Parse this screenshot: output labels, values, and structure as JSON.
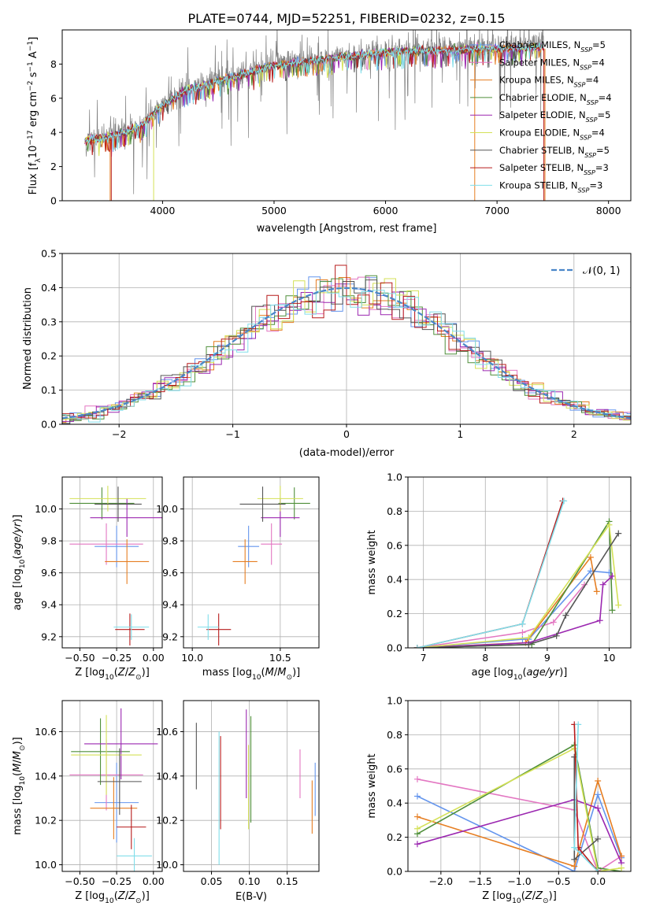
{
  "title": "PLATE=0744, MJD=52251, FIBERID=0232, z=0.15",
  "models": [
    {
      "name": "Chabrier MILES",
      "nssp": "5",
      "color": "#6495ed"
    },
    {
      "name": "Salpeter MILES",
      "nssp": "4",
      "color": "#e377c2"
    },
    {
      "name": "Kroupa MILES",
      "nssp": "4",
      "color": "#e67e22"
    },
    {
      "name": "Chabrier ELODIE",
      "nssp": "4",
      "color": "#4f8f3a"
    },
    {
      "name": "Salpeter ELODIE",
      "nssp": "5",
      "color": "#9b27b0"
    },
    {
      "name": "Kroupa ELODIE",
      "nssp": "4",
      "color": "#d4e157"
    },
    {
      "name": "Chabrier STELIB",
      "nssp": "5",
      "color": "#555555"
    },
    {
      "name": "Salpeter STELIB",
      "nssp": "3",
      "color": "#b71c1c"
    },
    {
      "name": "Kroupa STELIB",
      "nssp": "3",
      "color": "#80deea"
    }
  ],
  "chart_data": [
    {
      "id": "spectrum",
      "type": "line",
      "xlabel": "wavelength [Angstrom, rest frame]",
      "ylabel": "Flux [f_λ 10^-17 erg cm^-2 s^-1 A^-1]",
      "xlim": [
        3100,
        8200
      ],
      "ylim": [
        0,
        10
      ],
      "xticks": [
        4000,
        5000,
        6000,
        7000,
        8000
      ],
      "yticks": [
        0,
        2,
        4,
        6,
        8
      ],
      "grid": false,
      "legend": "top-right",
      "continuum": {
        "x": [
          3300,
          3500,
          3800,
          4000,
          4200,
          4500,
          5000,
          5500,
          6000,
          6500,
          7000,
          7400
        ],
        "y": [
          3.5,
          3.7,
          4.3,
          5.6,
          6.4,
          7.0,
          7.9,
          8.3,
          8.7,
          8.8,
          8.9,
          9.0
        ]
      }
    },
    {
      "id": "residuals",
      "type": "histogram",
      "xlabel": "(data-model)/error",
      "ylabel": "Normed distribution",
      "xlim": [
        -2.5,
        2.5
      ],
      "ylim": [
        0,
        0.5
      ],
      "xticks": [
        -2,
        -1,
        0,
        1,
        2
      ],
      "yticks": [
        0.0,
        0.1,
        0.2,
        0.3,
        0.4,
        0.5
      ],
      "grid": true,
      "legend": "top-right",
      "gaussian_label": "𝒩(0, 1)",
      "bin_width": 0.1
    },
    {
      "id": "age-vs-Z",
      "type": "errorbar",
      "xlabel": "Z [log10(Z/Z⊙)]",
      "ylabel": "age  [log10(age/yr)]",
      "xlim": [
        -0.62,
        0.06
      ],
      "ylim": [
        9.13,
        10.2
      ],
      "xticks": [
        -0.5,
        -0.25,
        0.0
      ],
      "yticks": [
        9.2,
        9.4,
        9.6,
        9.8,
        10.0
      ],
      "grid": true,
      "points": [
        {
          "x": -0.25,
          "xerr": 0.15,
          "y": 9.765,
          "yerr": 0.13
        },
        {
          "x": -0.32,
          "xerr": 0.25,
          "y": 9.78,
          "yerr": 0.13
        },
        {
          "x": -0.18,
          "xerr": 0.15,
          "y": 9.67,
          "yerr": 0.14
        },
        {
          "x": -0.35,
          "xerr": 0.22,
          "y": 10.035,
          "yerr": 0.1
        },
        {
          "x": -0.18,
          "xerr": 0.25,
          "y": 9.945,
          "yerr": 0.12
        },
        {
          "x": -0.31,
          "xerr": 0.26,
          "y": 10.065,
          "yerr": 0.08
        },
        {
          "x": -0.24,
          "xerr": 0.16,
          "y": 10.03,
          "yerr": 0.11
        },
        {
          "x": -0.16,
          "xerr": 0.1,
          "y": 9.245,
          "yerr": 0.1
        },
        {
          "x": -0.15,
          "xerr": 0.12,
          "y": 9.26,
          "yerr": 0.08
        }
      ]
    },
    {
      "id": "age-vs-mass",
      "type": "errorbar",
      "xlabel": "mass [log10(M/M⊙)]",
      "ylabel": "",
      "xlim": [
        9.95,
        10.72
      ],
      "ylim": [
        9.13,
        10.2
      ],
      "xticks": [
        10.0,
        10.5
      ],
      "yticks": [
        9.2,
        9.4,
        9.6,
        9.8,
        10.0
      ],
      "grid": true,
      "points": [
        {
          "x": 10.32,
          "xerr": 0.06,
          "y": 9.765,
          "yerr": 0.13
        },
        {
          "x": 10.45,
          "xerr": 0.06,
          "y": 9.78,
          "yerr": 0.13
        },
        {
          "x": 10.3,
          "xerr": 0.07,
          "y": 9.67,
          "yerr": 0.14
        },
        {
          "x": 10.58,
          "xerr": 0.09,
          "y": 10.035,
          "yerr": 0.1
        },
        {
          "x": 10.5,
          "xerr": 0.11,
          "y": 9.945,
          "yerr": 0.12
        },
        {
          "x": 10.5,
          "xerr": 0.13,
          "y": 10.065,
          "yerr": 0.08
        },
        {
          "x": 10.4,
          "xerr": 0.13,
          "y": 10.03,
          "yerr": 0.11
        },
        {
          "x": 10.15,
          "xerr": 0.07,
          "y": 9.245,
          "yerr": 0.1
        },
        {
          "x": 10.09,
          "xerr": 0.06,
          "y": 9.26,
          "yerr": 0.08
        }
      ]
    },
    {
      "id": "mass-weight-vs-age",
      "type": "line",
      "xlabel": "age  [log10(age/yr)]",
      "ylabel": "mass weight",
      "xlim": [
        6.75,
        10.35
      ],
      "ylim": [
        0,
        1.0
      ],
      "xticks": [
        7,
        8,
        9,
        10
      ],
      "yticks": [
        0.0,
        0.2,
        0.4,
        0.6,
        0.8,
        1.0
      ],
      "grid": true,
      "series": [
        {
          "x": [
            6.9,
            8.6,
            8.7,
            9.7,
            10.0
          ],
          "y": [
            0.0,
            0.05,
            0.05,
            0.45,
            0.44
          ]
        },
        {
          "x": [
            6.9,
            8.6,
            9.1,
            9.6
          ],
          "y": [
            0.0,
            0.09,
            0.15,
            0.37
          ]
        },
        {
          "x": [
            6.9,
            8.65,
            9.7,
            9.8
          ],
          "y": [
            0.0,
            0.03,
            0.53,
            0.33
          ]
        },
        {
          "x": [
            6.9,
            8.75,
            10.0,
            10.05
          ],
          "y": [
            0.0,
            0.02,
            0.74,
            0.22
          ]
        },
        {
          "x": [
            6.9,
            8.7,
            9.85,
            9.9,
            10.05
          ],
          "y": [
            0.0,
            0.03,
            0.16,
            0.37,
            0.42
          ]
        },
        {
          "x": [
            6.9,
            8.7,
            10.0,
            10.15
          ],
          "y": [
            0.0,
            0.06,
            0.72,
            0.25
          ]
        },
        {
          "x": [
            6.9,
            8.7,
            9.15,
            9.3,
            10.15
          ],
          "y": [
            0.0,
            0.02,
            0.07,
            0.19,
            0.67
          ]
        },
        {
          "x": [
            6.9,
            8.6,
            9.25
          ],
          "y": [
            0.0,
            0.14,
            0.86
          ]
        },
        {
          "x": [
            6.9,
            8.6,
            9.27
          ],
          "y": [
            0.0,
            0.14,
            0.86
          ]
        }
      ]
    },
    {
      "id": "mass-vs-Z",
      "type": "errorbar",
      "xlabel": "Z [log10(Z/Z⊙)]",
      "ylabel": "mass [log10(M/M⊙)]",
      "xlim": [
        -0.62,
        0.06
      ],
      "ylim": [
        9.97,
        10.74
      ],
      "xticks": [
        -0.5,
        -0.25,
        0.0
      ],
      "yticks": [
        10.0,
        10.2,
        10.4,
        10.6
      ],
      "grid": true,
      "points": [
        {
          "x": -0.25,
          "xerr": 0.15,
          "y": 10.28,
          "yerr": 0.18
        },
        {
          "x": -0.32,
          "xerr": 0.25,
          "y": 10.405,
          "yerr": 0.16
        },
        {
          "x": -0.27,
          "xerr": 0.16,
          "y": 10.255,
          "yerr": 0.14
        },
        {
          "x": -0.36,
          "xerr": 0.2,
          "y": 10.51,
          "yerr": 0.15
        },
        {
          "x": -0.22,
          "xerr": 0.25,
          "y": 10.545,
          "yerr": 0.16
        },
        {
          "x": -0.32,
          "xerr": 0.24,
          "y": 10.495,
          "yerr": 0.18
        },
        {
          "x": -0.23,
          "xerr": 0.15,
          "y": 10.375,
          "yerr": 0.15
        },
        {
          "x": -0.15,
          "xerr": 0.1,
          "y": 10.17,
          "yerr": 0.1
        },
        {
          "x": -0.13,
          "xerr": 0.12,
          "y": 10.04,
          "yerr": 0.08
        }
      ]
    },
    {
      "id": "mass-vs-EBV",
      "type": "errorbar",
      "xlabel": "E(B-V)",
      "ylabel": "",
      "xlim": [
        0.013,
        0.192
      ],
      "ylim": [
        9.97,
        10.74
      ],
      "xticks": [
        0.05,
        0.1,
        0.15
      ],
      "yticks": [
        10.0,
        10.2,
        10.4,
        10.6
      ],
      "grid": true,
      "points": [
        {
          "x": 0.187,
          "y": 10.34,
          "yerr": 0.12
        },
        {
          "x": 0.167,
          "y": 10.41,
          "yerr": 0.11
        },
        {
          "x": 0.183,
          "y": 10.26,
          "yerr": 0.12
        },
        {
          "x": 0.102,
          "y": 10.43,
          "yerr": 0.24
        },
        {
          "x": 0.096,
          "y": 10.5,
          "yerr": 0.2
        },
        {
          "x": 0.099,
          "y": 10.35,
          "yerr": 0.19
        },
        {
          "x": 0.03,
          "y": 10.49,
          "yerr": 0.15
        },
        {
          "x": 0.062,
          "y": 10.37,
          "yerr": 0.21
        },
        {
          "x": 0.06,
          "y": 10.3,
          "yerr": 0.3
        }
      ]
    },
    {
      "id": "mass-weight-vs-Z",
      "type": "line",
      "xlabel": "Z [log10(Z/Z⊙)]",
      "ylabel": "mass weight",
      "xlim": [
        -2.42,
        0.42
      ],
      "ylim": [
        0,
        1.0
      ],
      "xticks": [
        -2.0,
        -1.5,
        -1.0,
        -0.5,
        0.0
      ],
      "yticks": [
        0.0,
        0.2,
        0.4,
        0.6,
        0.8,
        1.0
      ],
      "grid": true,
      "series": [
        {
          "x": [
            -2.3,
            -0.3,
            0.0,
            0.3
          ],
          "y": [
            0.44,
            0.0,
            0.45,
            0.08
          ]
        },
        {
          "x": [
            -2.3,
            -0.3,
            0.0,
            0.3
          ],
          "y": [
            0.54,
            0.36,
            0.0,
            0.09
          ]
        },
        {
          "x": [
            -2.3,
            -0.3,
            0.0,
            0.3
          ],
          "y": [
            0.32,
            0.03,
            0.53,
            0.09
          ]
        },
        {
          "x": [
            -2.3,
            -0.3,
            0.0,
            0.3
          ],
          "y": [
            0.22,
            0.74,
            0.02,
            0.0
          ]
        },
        {
          "x": [
            -2.3,
            -0.3,
            0.0,
            0.3
          ],
          "y": [
            0.16,
            0.42,
            0.37,
            0.05
          ]
        },
        {
          "x": [
            -2.3,
            -0.3,
            0.0,
            0.3
          ],
          "y": [
            0.25,
            0.72,
            0.0,
            0.02
          ]
        },
        {
          "x": [
            -0.3,
            -0.3,
            0.0
          ],
          "y": [
            0.67,
            0.07,
            0.19
          ]
        },
        {
          "x": [
            -0.3,
            -0.25,
            0.0
          ],
          "y": [
            0.86,
            0.14,
            0.0
          ]
        },
        {
          "x": [
            -0.25,
            -0.3,
            0.0
          ],
          "y": [
            0.86,
            0.14,
            0.0
          ]
        }
      ]
    }
  ]
}
